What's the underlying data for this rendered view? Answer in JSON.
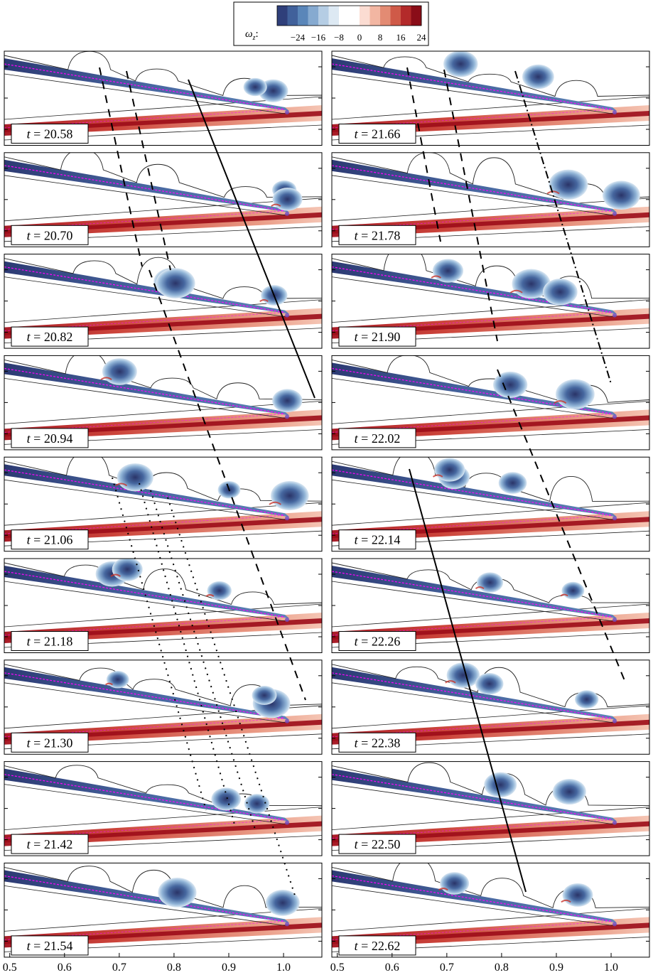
{
  "colorbar": {
    "symbol": "ω",
    "subscript": "z",
    "suffix": ":",
    "tick_labels": [
      "−24",
      "−16",
      "−8",
      "0",
      "8",
      "16",
      "24"
    ],
    "colors": [
      "#2f3f7a",
      "#41619b",
      "#5a86b9",
      "#86aad0",
      "#b5cde4",
      "#dde9f3",
      "#ffffff",
      "#ffffff",
      "#fbdcd2",
      "#f2b6a2",
      "#e38b73",
      "#cf5a48",
      "#b32a2a",
      "#8a0d18"
    ]
  },
  "left_column_times": [
    "20.58",
    "20.70",
    "20.82",
    "20.94",
    "21.06",
    "21.18",
    "21.30",
    "21.42",
    "21.54"
  ],
  "right_column_times": [
    "21.66",
    "21.78",
    "21.90",
    "22.02",
    "22.14",
    "22.26",
    "22.38",
    "22.50",
    "22.62"
  ],
  "time_prefix": "t",
  "time_equals": " = ",
  "x_tick_labels": [
    "0.5",
    "0.6",
    "0.7",
    "0.8",
    "0.9",
    "1.0"
  ],
  "x_axis": {
    "min": 0.49,
    "max": 1.07
  },
  "style": {
    "vortex_blue": "#3e5e97",
    "vortex_dark": "#27346a",
    "red_jet": "#c1342d",
    "magenta": "#ff00ff"
  }
}
